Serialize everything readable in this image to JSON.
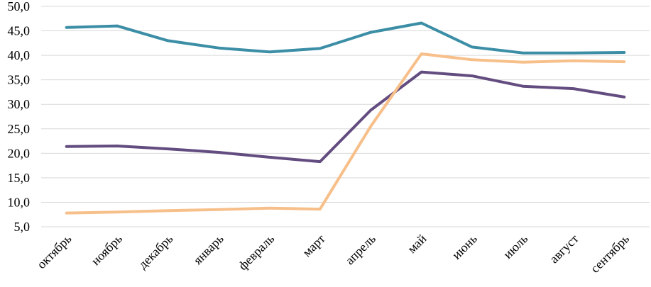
{
  "chart_data": {
    "type": "line",
    "categories": [
      "октябрь",
      "ноябрь",
      "декабрь",
      "январь",
      "февраль",
      "март",
      "апрель",
      "май",
      "июнь",
      "июль",
      "август",
      "сентябрь"
    ],
    "series": [
      {
        "color": "#3b8ea5",
        "values": [
          45.7,
          46.0,
          43.0,
          41.5,
          40.7,
          41.4,
          44.7,
          46.6,
          41.7,
          40.5,
          40.5,
          40.6
        ]
      },
      {
        "color": "#634c7f",
        "values": [
          21.4,
          21.5,
          20.9,
          20.2,
          19.2,
          18.3,
          28.8,
          36.6,
          35.8,
          33.7,
          33.2,
          31.5
        ]
      },
      {
        "color": "#f7bf89",
        "values": [
          7.8,
          8.0,
          8.3,
          8.5,
          8.8,
          8.6,
          25.5,
          40.3,
          39.1,
          38.6,
          38.9,
          38.7
        ]
      }
    ],
    "yticks": [
      "5,0",
      "10,0",
      "15,0",
      "20,0",
      "25,0",
      "30,0",
      "35,0",
      "40,0",
      "45,0",
      "50,0"
    ],
    "ylim": [
      5,
      50
    ],
    "grid": true,
    "legend": "none"
  }
}
